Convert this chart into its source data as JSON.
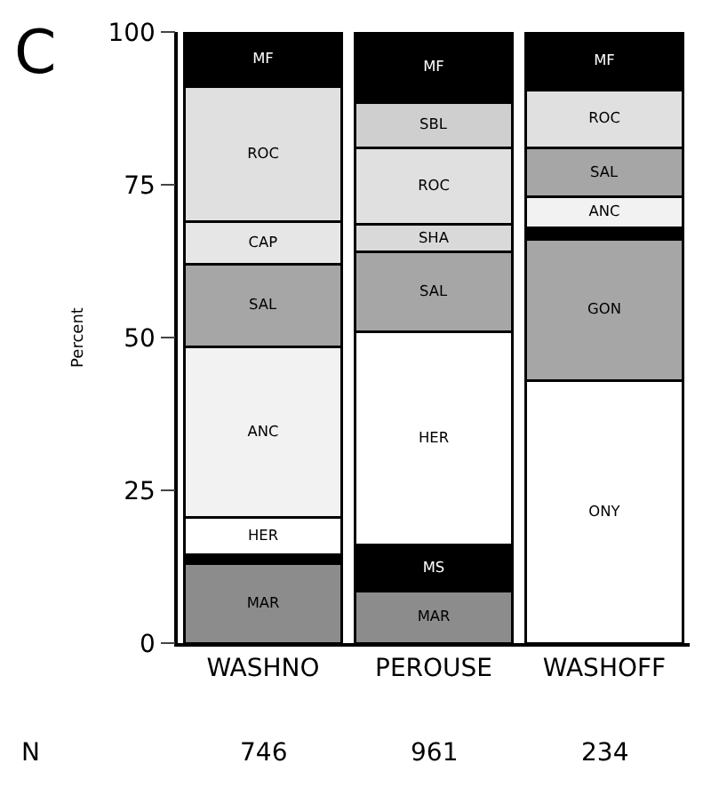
{
  "chart_data": {
    "type": "bar",
    "stacked": true,
    "ylabel": "Percent",
    "categories": [
      "WASHNO",
      "PEROUSE",
      "WASHOFF"
    ],
    "series": [
      {
        "name": "MAR",
        "color": "#8c8c8c",
        "values": [
          13,
          8.5,
          null
        ]
      },
      {
        "color": "#000000",
        "values": [
          1.5,
          null,
          null
        ]
      },
      {
        "name": "MS",
        "color": "#000000",
        "values": [
          null,
          7.5,
          null
        ]
      },
      {
        "name": "HER",
        "color": "#ffffff",
        "values": [
          6,
          35,
          null
        ]
      },
      {
        "name": "ONY",
        "color": "#ffffff",
        "values": [
          null,
          null,
          43
        ]
      },
      {
        "name": "GON",
        "color": "#a6a6a6",
        "values": [
          null,
          null,
          23
        ]
      },
      {
        "color": "#000000",
        "values": [
          null,
          null,
          2
        ]
      },
      {
        "name": "ANC",
        "color": "#f2f2f2",
        "values": [
          28,
          null,
          5
        ]
      },
      {
        "name": "SAL",
        "color": "#a6a6a6",
        "values": [
          13.5,
          13,
          8
        ]
      },
      {
        "name": "CAP",
        "color": "#e6e6e6",
        "values": [
          7,
          null,
          null
        ]
      },
      {
        "name": "SHA",
        "color": "#d9d9d9",
        "values": [
          null,
          4.5,
          null
        ]
      },
      {
        "name": "ROC",
        "color": "#e0e0e0",
        "values": [
          22,
          12.5,
          9.5
        ]
      },
      {
        "name": "SBL",
        "color": "#cfcfcf",
        "values": [
          null,
          7.5,
          null
        ]
      },
      {
        "name": "MF",
        "color": "#000000",
        "values": [
          9,
          11.5,
          9.5
        ]
      }
    ],
    "ylim": [
      0,
      100
    ],
    "yticks": [
      0,
      25,
      50,
      75,
      100
    ],
    "legend": false,
    "annotations": [
      "C",
      "N",
      "746",
      "961",
      "234"
    ]
  }
}
